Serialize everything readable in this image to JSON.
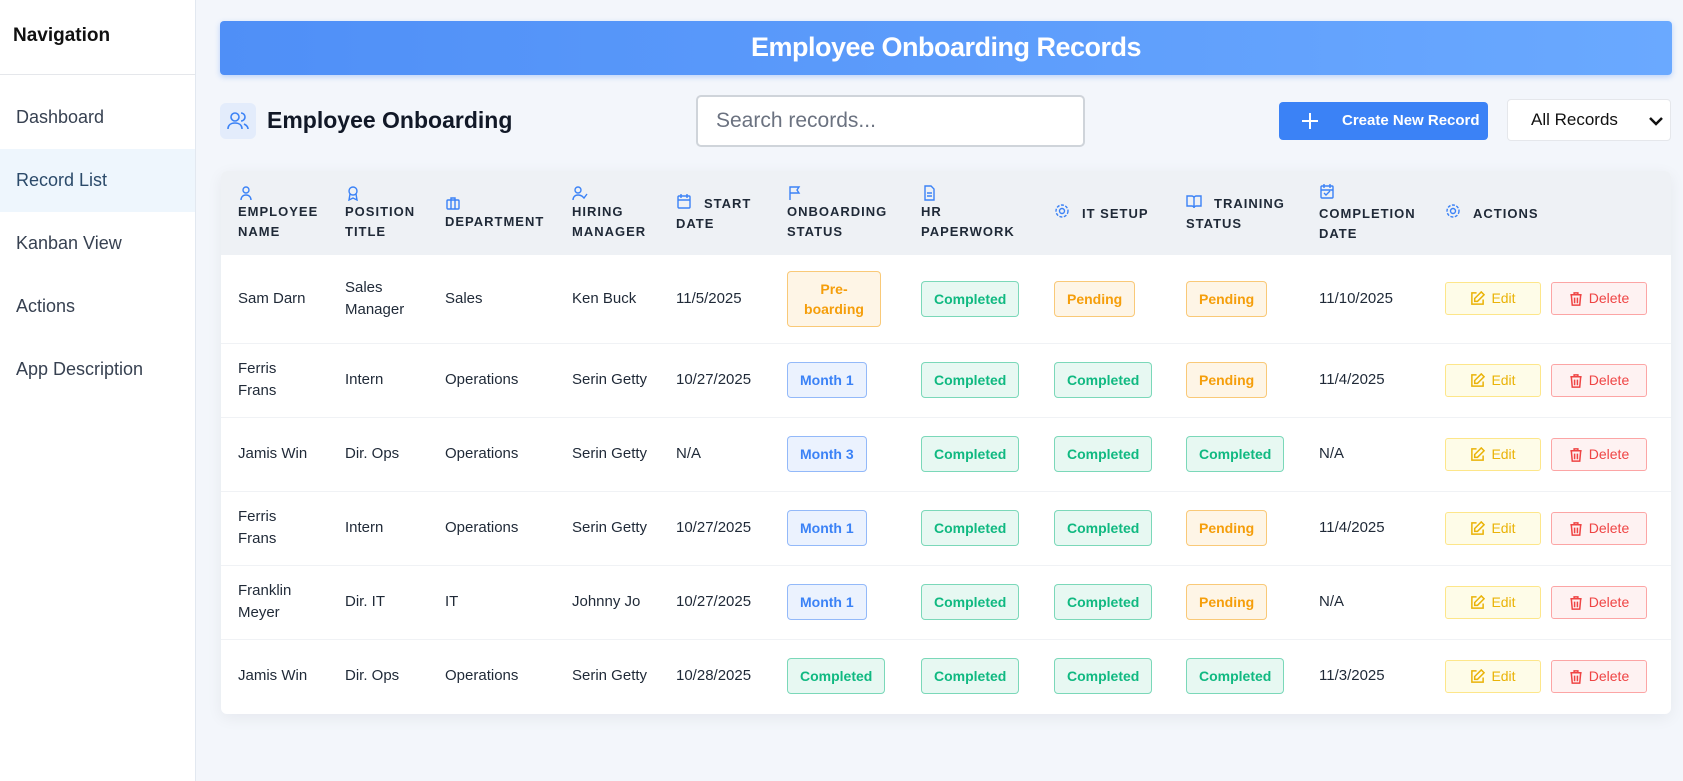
{
  "sidebar": {
    "title": "Navigation",
    "items": [
      "Dashboard",
      "Record List",
      "Kanban View",
      "Actions",
      "App Description"
    ]
  },
  "header": {
    "title": "Employee Onboarding Records"
  },
  "toolbar": {
    "title": "Employee Onboarding",
    "search_placeholder": "Search records...",
    "create_button": "Create New Record",
    "filter": "All Records"
  },
  "table": {
    "columns": [
      "EMPLOYEE NAME",
      "POSITION TITLE",
      "DEPARTMENT",
      "HIRING MANAGER",
      "START DATE",
      "ONBOARDING STATUS",
      "HR PAPERWORK",
      "IT SETUP",
      "TRAINING STATUS",
      "COMPLETION DATE",
      "ACTIONS"
    ],
    "actions": [
      "Edit",
      "Delete"
    ],
    "rows": [
      [
        "Sam Darn",
        "Sales Manager",
        "Sales",
        "Ken Buck",
        "11/5/2025",
        {
          "label": "Pre-boarding",
          "color": "#f59e0b"
        },
        {
          "label": "Completed",
          "color": "#10b981"
        },
        {
          "label": "Pending",
          "color": "#f59e0b"
        },
        {
          "label": "Pending",
          "color": "#f59e0b"
        },
        "11/10/2025"
      ],
      [
        "Ferris Frans",
        "Intern",
        "Operations",
        "Serin Getty",
        "10/27/2025",
        {
          "label": "Month 1",
          "color": "#3b82f6"
        },
        {
          "label": "Completed",
          "color": "#10b981"
        },
        {
          "label": "Completed",
          "color": "#10b981"
        },
        {
          "label": "Pending",
          "color": "#f59e0b"
        },
        "11/4/2025"
      ],
      [
        "Jamis Win",
        "Dir. Ops",
        "Operations",
        "Serin Getty",
        "N/A",
        {
          "label": "Month 3",
          "color": "#3b82f6"
        },
        {
          "label": "Completed",
          "color": "#10b981"
        },
        {
          "label": "Completed",
          "color": "#10b981"
        },
        {
          "label": "Completed",
          "color": "#10b981"
        },
        "N/A"
      ],
      [
        "Ferris Frans",
        "Intern",
        "Operations",
        "Serin Getty",
        "10/27/2025",
        {
          "label": "Month 1",
          "color": "#3b82f6"
        },
        {
          "label": "Completed",
          "color": "#10b981"
        },
        {
          "label": "Completed",
          "color": "#10b981"
        },
        {
          "label": "Pending",
          "color": "#f59e0b"
        },
        "11/4/2025"
      ],
      [
        "Franklin Meyer",
        "Dir. IT",
        "IT",
        "Johnny Jo",
        "10/27/2025",
        {
          "label": "Month 1",
          "color": "#3b82f6"
        },
        {
          "label": "Completed",
          "color": "#10b981"
        },
        {
          "label": "Completed",
          "color": "#10b981"
        },
        {
          "label": "Pending",
          "color": "#f59e0b"
        },
        "N/A"
      ],
      [
        "Jamis Win",
        "Dir. Ops",
        "Operations",
        "Serin Getty",
        "10/28/2025",
        {
          "label": "Completed",
          "color": "#10b981"
        },
        {
          "label": "Completed",
          "color": "#10b981"
        },
        {
          "label": "Completed",
          "color": "#10b981"
        },
        {
          "label": "Completed",
          "color": "#10b981"
        },
        "11/3/2025"
      ]
    ]
  }
}
